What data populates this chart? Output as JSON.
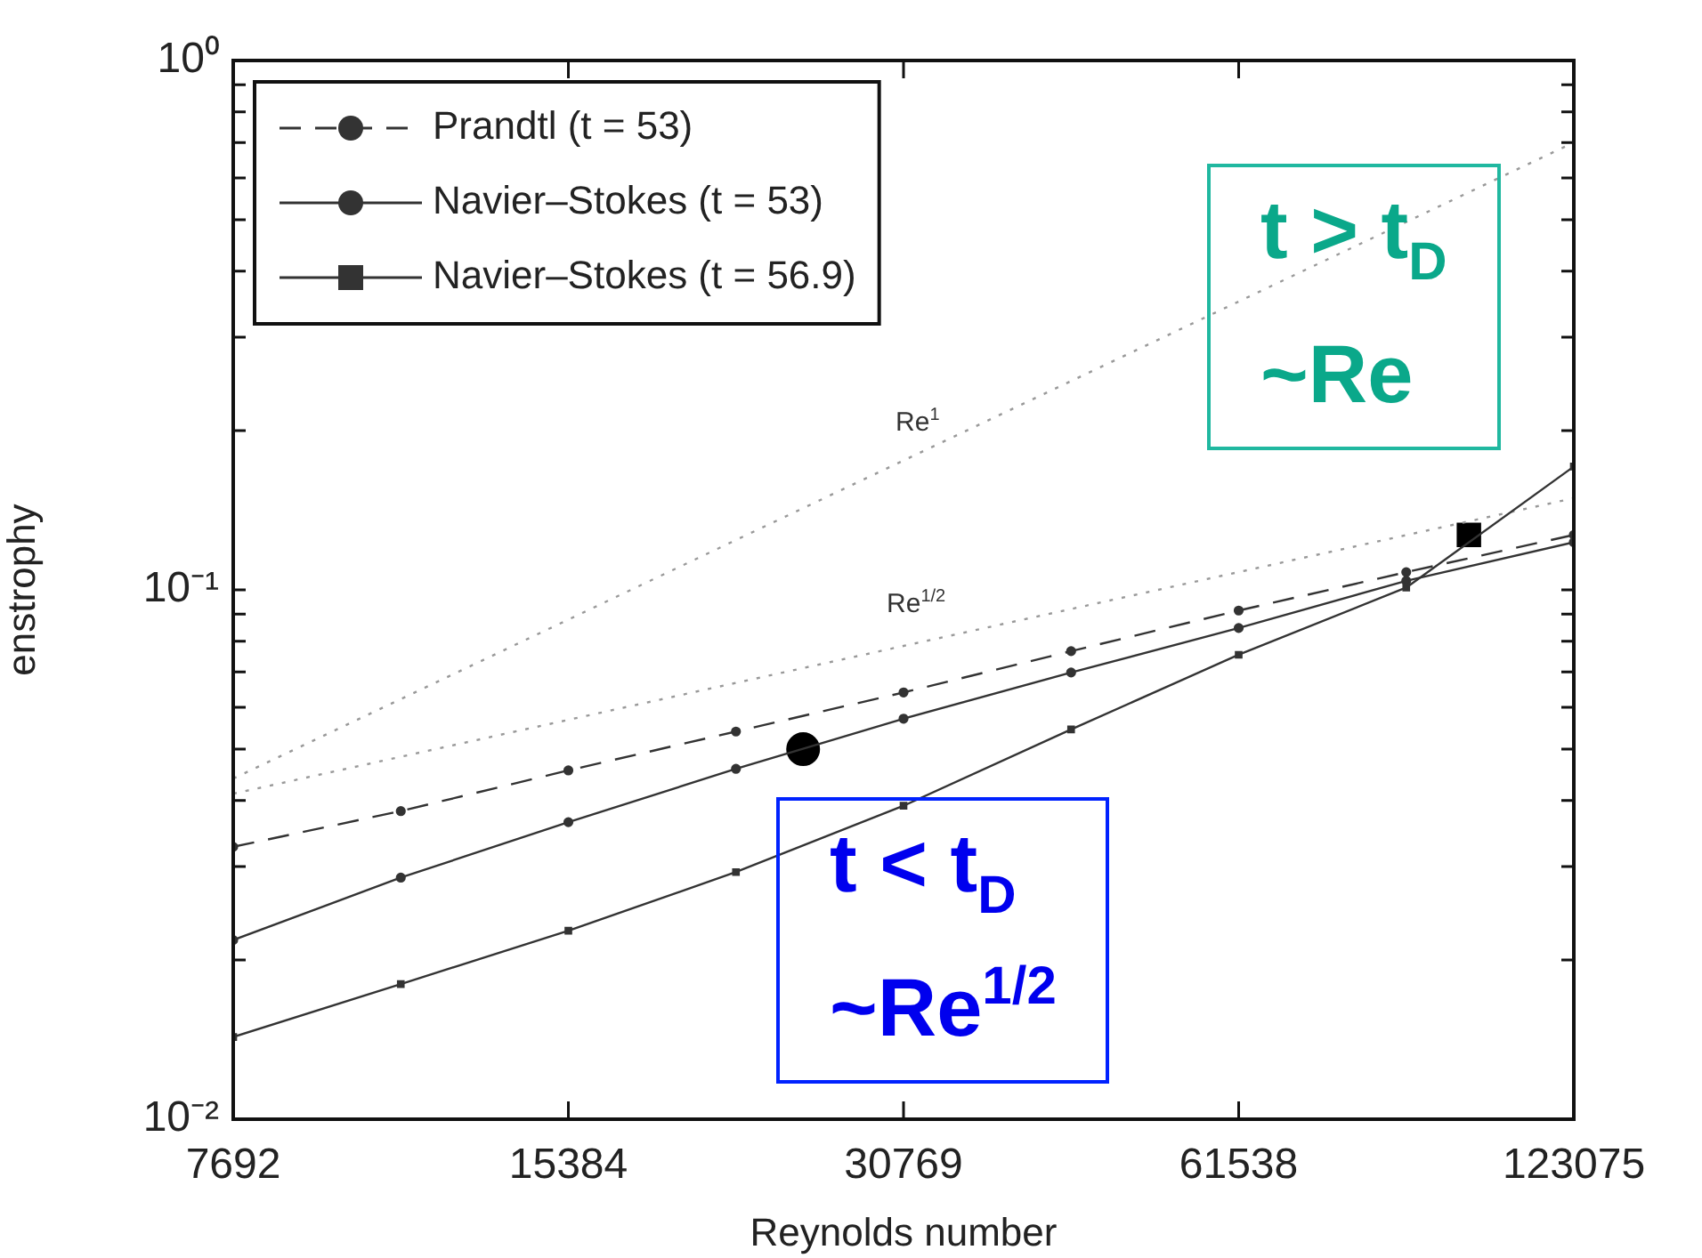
{
  "chart_data": {
    "type": "line",
    "xlabel": "Reynolds number",
    "ylabel": "enstrophy",
    "log": "xy",
    "grid": false,
    "legend": "top left",
    "xlim": [
      7692,
      123075
    ],
    "xticks": [
      7692,
      15384,
      30769,
      61538,
      123075
    ],
    "ylim": [
      0.01,
      1
    ],
    "yticks": [
      {
        "value": 0.01,
        "label": "10⁻²"
      },
      {
        "value": 0.02,
        "label": null
      },
      {
        "value": 0.03,
        "label": null
      },
      {
        "value": 0.04,
        "label": null
      },
      {
        "value": 0.05,
        "label": null
      },
      {
        "value": 0.06,
        "label": null
      },
      {
        "value": 0.07,
        "label": null
      },
      {
        "value": 0.08,
        "label": null
      },
      {
        "value": 0.09,
        "label": null
      },
      {
        "value": 0.1,
        "label": "10⁻¹"
      },
      {
        "value": 0.2,
        "label": null
      },
      {
        "value": 0.3,
        "label": null
      },
      {
        "value": 0.4,
        "label": null
      },
      {
        "value": 0.5,
        "label": null
      },
      {
        "value": 0.6,
        "label": null
      },
      {
        "value": 0.7,
        "label": null
      },
      {
        "value": 0.8,
        "label": null
      },
      {
        "value": 0.9,
        "label": null
      },
      {
        "value": 1,
        "label": "10⁰"
      }
    ],
    "x": [
      7692,
      10878,
      15384,
      21757,
      30769,
      43514,
      61538,
      87027,
      123075
    ],
    "series": [
      {
        "name": "Prandtl (t = 53)",
        "color": "#333333",
        "line_style": "dashed",
        "marker": "circle",
        "values": [
          0.0327,
          0.0382,
          0.0456,
          0.054,
          0.064,
          0.0766,
          0.0914,
          0.108,
          0.127
        ]
      },
      {
        "name": "Navier–Stokes (t = 53)",
        "color": "#333333",
        "line_style": "solid",
        "marker": "circle",
        "values": [
          0.0218,
          0.0286,
          0.0364,
          0.0459,
          0.0571,
          0.0698,
          0.0847,
          0.104,
          0.123
        ]
      },
      {
        "name": "Navier–Stokes (t = 56.9)",
        "color": "#333333",
        "line_style": "solid",
        "marker": "square",
        "values": [
          0.0143,
          0.018,
          0.0227,
          0.0293,
          0.0391,
          0.0545,
          0.0754,
          0.101,
          0.171
        ]
      },
      {
        "type": "line",
        "color": "#999999",
        "line_style": "dotted",
        "marker": "none",
        "x": [
          7692,
          123075
        ],
        "values": [
          0.044,
          0.7
        ]
      },
      {
        "type": "line",
        "color": "#999999",
        "line_style": "dotted",
        "marker": "none",
        "x": [
          7692,
          123075
        ],
        "values": [
          0.0412,
          0.149
        ]
      },
      {
        "type": "scatter",
        "color": "#000000",
        "marker": "circle",
        "x": [
          25000
        ],
        "values": [
          0.05
        ]
      },
      {
        "type": "scatter",
        "color": "#000000",
        "marker": "square",
        "x": [
          99070
        ],
        "values": [
          0.127
        ]
      }
    ],
    "annotations": [
      "Re$^{1}$",
      "Re$^{1/2}$",
      "t > t$_{D}$\n~Re",
      "t < t$_{D}$\n~Re$^{1/2}$"
    ]
  }
}
